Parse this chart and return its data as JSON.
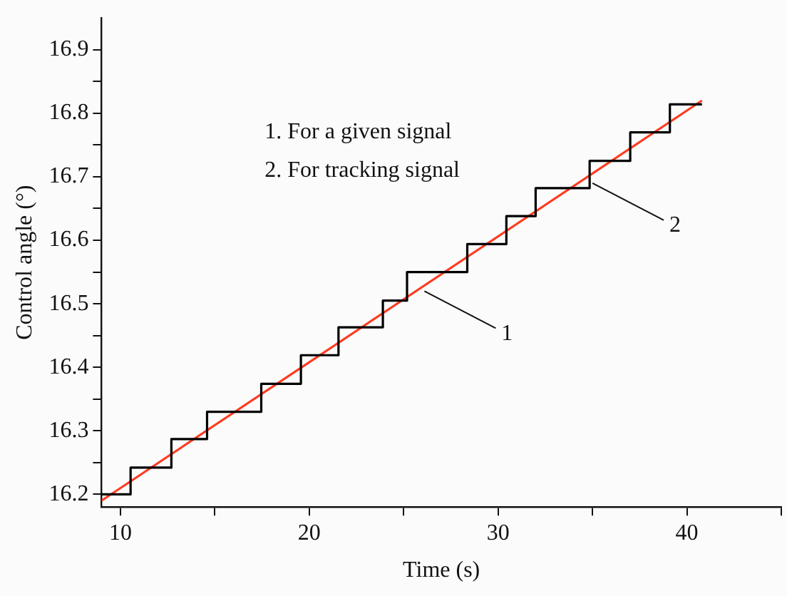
{
  "chart_data": {
    "type": "line",
    "xlabel": "Time (s)",
    "ylabel": "Control angle (°)",
    "xlim": [
      9,
      45
    ],
    "xticks": [
      10,
      {
        "value": 15,
        "label": null
      },
      20,
      {
        "value": 25,
        "label": null
      },
      30,
      {
        "value": 35,
        "label": null
      },
      40,
      {
        "value": 45,
        "label": null
      }
    ],
    "ylim": [
      16.18,
      16.95
    ],
    "yticks": [
      16.2,
      {
        "value": 16.25,
        "label": null
      },
      16.3,
      {
        "value": 16.35,
        "label": null
      },
      16.4,
      {
        "value": 16.45,
        "label": null
      },
      16.5,
      {
        "value": 16.55,
        "label": null
      },
      16.6,
      {
        "value": 16.65,
        "label": null
      },
      16.7,
      {
        "value": 16.75,
        "label": null
      },
      16.8,
      {
        "value": 16.85,
        "label": null
      },
      16.9
    ],
    "grid": false,
    "legend": false,
    "marker": "none",
    "line_style": "solid",
    "series": [
      {
        "type": "step",
        "color": "#000000",
        "x": [
          9,
          10.54,
          12.7,
          14.59,
          17.46,
          19.56,
          21.55,
          23.9,
          25.18,
          28.37,
          30.44,
          31.99,
          34.85,
          37.0,
          39.1,
          40.8
        ],
        "values": [
          16.2,
          16.242,
          16.287,
          16.33,
          16.374,
          16.419,
          16.463,
          16.505,
          16.55,
          16.594,
          16.638,
          16.682,
          16.725,
          16.77,
          16.814,
          16.814
        ]
      },
      {
        "type": "line",
        "color": "#ff3b1f",
        "x": [
          9,
          40.8
        ],
        "values": [
          16.19,
          16.82
        ]
      }
    ],
    "annotations": [
      "1. For a given signal",
      "2. For tracking signal",
      {
        "text": "1",
        "x": 26.1,
        "y": 16.52
      },
      {
        "text": "2",
        "x": 35,
        "y": 16.69
      }
    ]
  }
}
